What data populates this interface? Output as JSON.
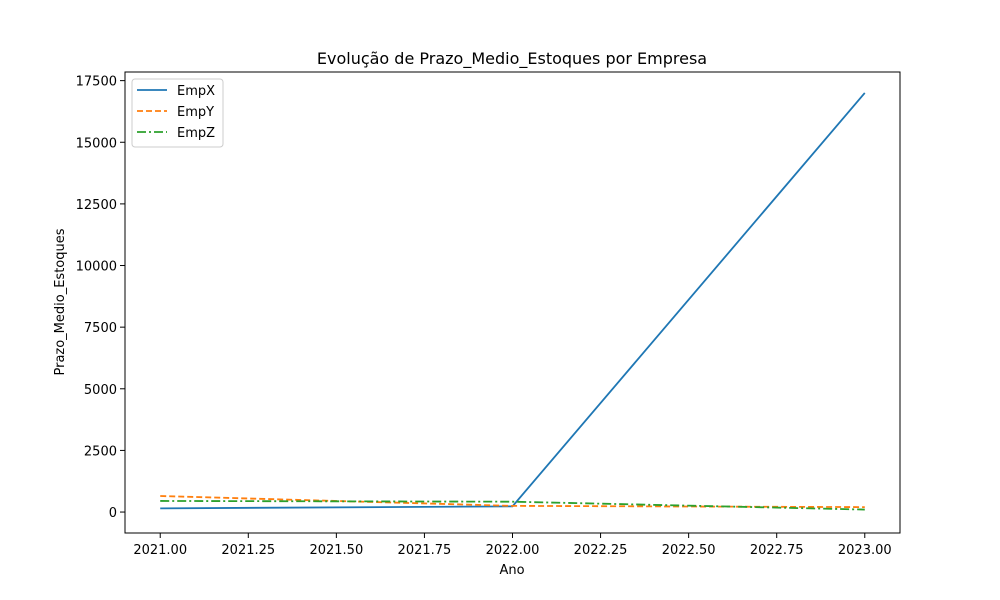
{
  "chart_data": {
    "type": "line",
    "title": "Evolução de Prazo_Medio_Estoques por Empresa",
    "xlabel": "Ano",
    "ylabel": "Prazo_Medio_Estoques",
    "x": [
      2021,
      2022,
      2023
    ],
    "xlim": [
      2020.9,
      2023.1
    ],
    "ylim": [
      -850,
      17850
    ],
    "xticks": [
      2021.0,
      2021.25,
      2021.5,
      2021.75,
      2022.0,
      2022.25,
      2022.5,
      2022.75,
      2023.0
    ],
    "xtick_labels": [
      "2021.00",
      "2021.25",
      "2021.50",
      "2021.75",
      "2022.00",
      "2022.25",
      "2022.50",
      "2022.75",
      "2023.00"
    ],
    "yticks": [
      0,
      2500,
      5000,
      7500,
      10000,
      12500,
      15000,
      17500
    ],
    "ytick_labels": [
      "0",
      "2500",
      "5000",
      "7500",
      "10000",
      "12500",
      "15000",
      "17500"
    ],
    "grid": false,
    "legend_position": "top-left",
    "series": [
      {
        "name": "EmpX",
        "values": [
          150,
          230,
          17000
        ],
        "color": "#1f77b4",
        "dash": "solid"
      },
      {
        "name": "EmpY",
        "values": [
          650,
          250,
          200
        ],
        "color": "#ff7f0e",
        "dash": "dashed"
      },
      {
        "name": "EmpZ",
        "values": [
          450,
          420,
          100
        ],
        "color": "#2ca02c",
        "dash": "dashdot"
      }
    ]
  }
}
